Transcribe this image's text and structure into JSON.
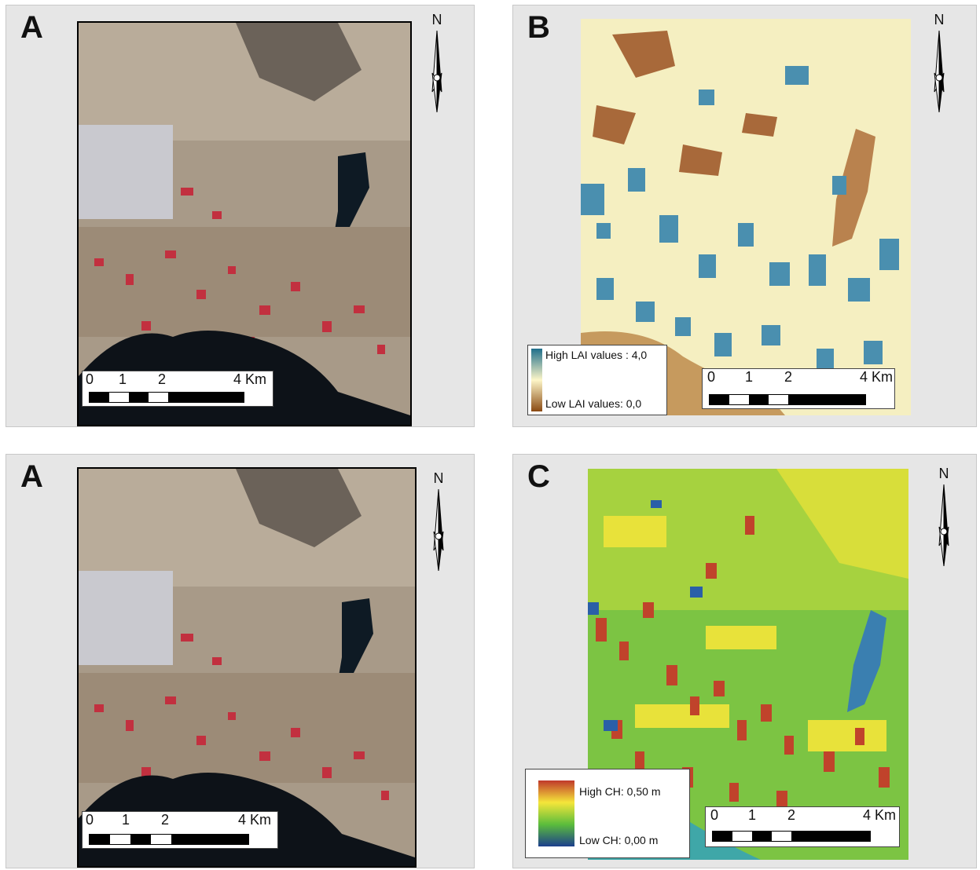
{
  "panels": {
    "a_top": {
      "letter": "A"
    },
    "b": {
      "letter": "B"
    },
    "a_bottom": {
      "letter": "A"
    },
    "c": {
      "letter": "C"
    }
  },
  "north_label": "N",
  "scale": {
    "tick_0": "0",
    "tick_1": "1",
    "tick_2": "2",
    "tick_4": "4 Km"
  },
  "legend_b": {
    "high": "High LAI values : 4,0",
    "low": "Low LAI values: 0,0",
    "colors": [
      "#1f6f8b",
      "#fdf6c8",
      "#8a4a12"
    ]
  },
  "legend_c": {
    "high": "High CH: 0,50 m",
    "low": "Low CH: 0,00 m",
    "colors": [
      "#c0392b",
      "#f5e63a",
      "#5bbd3c",
      "#1c3f8c"
    ]
  }
}
